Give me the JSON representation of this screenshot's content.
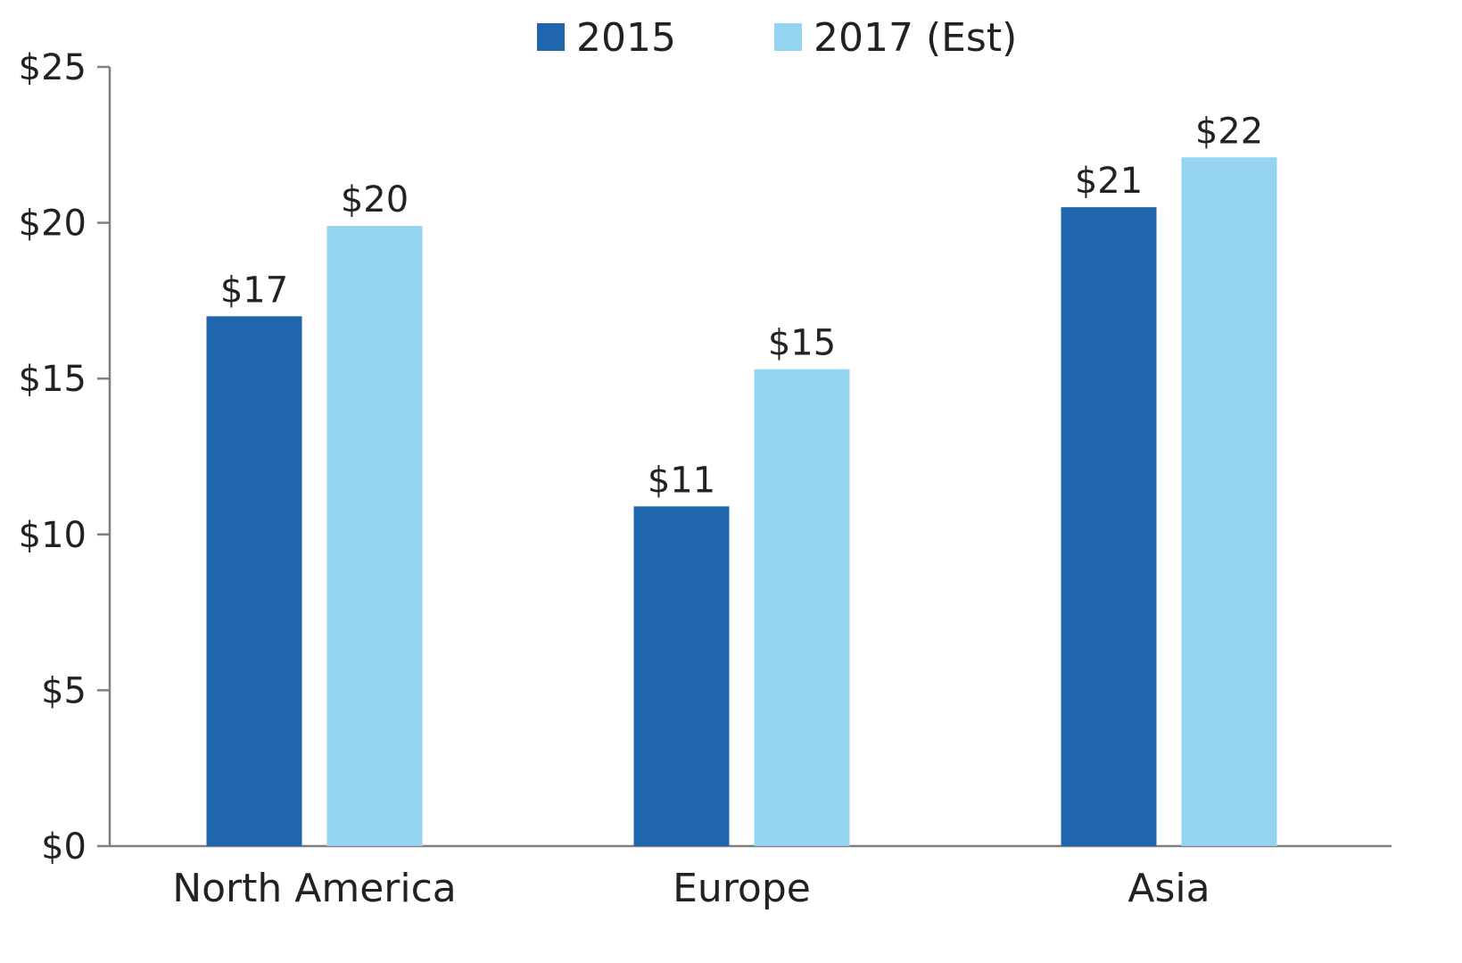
{
  "chart_data": {
    "type": "bar",
    "title": "",
    "xlabel": "",
    "ylabel": "",
    "categories": [
      "North America",
      "Europe",
      "Asia"
    ],
    "series": [
      {
        "name": "2015",
        "color": "#1f66ae",
        "values": [
          17,
          10.9,
          20.5
        ],
        "labels": [
          "$17",
          "$11",
          "$21"
        ]
      },
      {
        "name": "2017 (Est)",
        "color": "#95d4f0",
        "values": [
          19.9,
          15.3,
          22.1
        ],
        "labels": [
          "$20",
          "$15",
          "$22"
        ]
      }
    ],
    "ylim": [
      0,
      25
    ],
    "yticks": [
      0,
      5,
      10,
      15,
      20,
      25
    ],
    "ytick_labels": [
      "$0",
      "$5",
      "$10",
      "$15",
      "$20",
      "$25"
    ],
    "grid": false,
    "legend_position": "top-center",
    "axis_color": "#7f7f7f"
  }
}
